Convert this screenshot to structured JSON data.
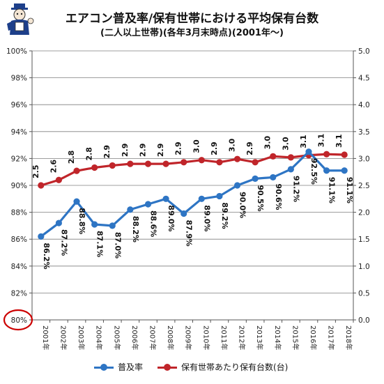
{
  "header": {
    "title_line1": "エアコン普及率/保有世帯における平均保有台数",
    "title_line2": "(二人以上世帯)(各年3月末時点)(2001年〜)"
  },
  "colors": {
    "blue_series": "#2e75c4",
    "red_series": "#c0252a",
    "highlight_circle": "#cc0000",
    "grid": "#7f7f7f"
  },
  "chart_data": {
    "type": "line",
    "categories": [
      "2001年",
      "2002年",
      "2003年",
      "2004年",
      "2005年",
      "2006年",
      "2007年",
      "2008年",
      "2009年",
      "2010年",
      "2011年",
      "2012年",
      "2013年",
      "2014年",
      "2015年",
      "2016年",
      "2017年",
      "2018年"
    ],
    "series": [
      {
        "name": "普及率",
        "axis": "left",
        "values": [
          86.2,
          87.2,
          88.8,
          87.1,
          87.0,
          88.2,
          88.6,
          89.0,
          87.9,
          89.0,
          89.2,
          90.0,
          90.5,
          90.6,
          91.2,
          92.5,
          91.1,
          91.1
        ],
        "labels": [
          "86.2%",
          "87.2%",
          "88.8%",
          "87.1%",
          "87.0%",
          "88.2%",
          "88.6%",
          "89.0%",
          "87.9%",
          "89.0%",
          "89.2%",
          "90.0%",
          "90.5%",
          "90.6%",
          "91.2%",
          "92.5%",
          "91.1%",
          "91.1%"
        ]
      },
      {
        "name": "保有世帯あたり保有台数(台)",
        "axis": "right",
        "values": [
          2.5,
          2.6,
          2.77,
          2.83,
          2.87,
          2.9,
          2.9,
          2.9,
          2.93,
          2.97,
          2.93,
          2.99,
          2.93,
          3.04,
          3.02,
          3.06,
          3.08,
          3.07
        ],
        "labels": [
          "2.5",
          "2.6",
          "2.8",
          "2.8",
          "2.9",
          "2.9",
          "2.9",
          "2.9",
          "2.9",
          "3.0",
          "2.9",
          "3.0",
          "2.9",
          "3.0",
          "3.0",
          "3.1",
          "3.1",
          "3.1"
        ]
      }
    ],
    "y_left": {
      "min": 80,
      "max": 100,
      "step": 2,
      "tick_labels": [
        "80%",
        "82%",
        "84%",
        "86%",
        "88%",
        "90%",
        "92%",
        "94%",
        "96%",
        "98%",
        "100%"
      ]
    },
    "y_right": {
      "min": 0,
      "max": 5,
      "step": 0.5,
      "tick_labels": [
        "0.0",
        "0.5",
        "1.0",
        "1.5",
        "2.0",
        "2.5",
        "3.0",
        "3.5",
        "4.0",
        "4.5",
        "5.0"
      ]
    },
    "grid": true,
    "legend_position": "bottom",
    "highlighted_tick": "80%"
  }
}
